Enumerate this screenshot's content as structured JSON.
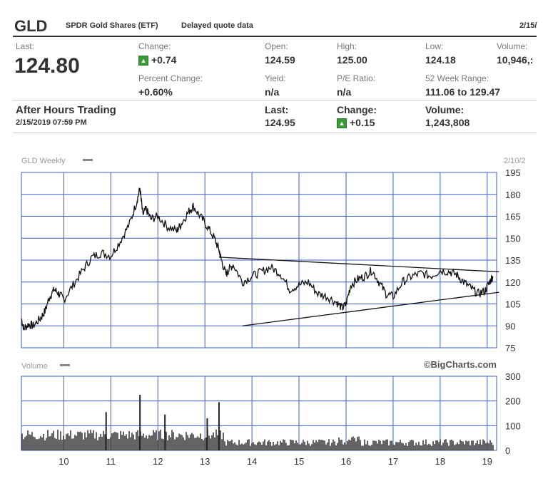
{
  "header": {
    "ticker": "GLD",
    "name": "SPDR Gold Shares (ETF)",
    "quote_note": "Delayed quote data",
    "date": "2/15/"
  },
  "quote": {
    "last_label": "Last:",
    "last": "124.80",
    "change_label": "Change:",
    "change": "+0.74",
    "pct_change_label": "Percent Change:",
    "pct_change": "+0.60%",
    "open_label": "Open:",
    "open": "124.59",
    "yield_label": "Yield:",
    "yield": "n/a",
    "high_label": "High:",
    "high": "125.00",
    "pe_label": "P/E Ratio:",
    "pe": "n/a",
    "low_label": "Low:",
    "low": "124.18",
    "range_label": "52 Week Range:",
    "range": "111.06 to 129.47",
    "volume_label": "Volume:",
    "volume": "10,946,:"
  },
  "after_hours": {
    "title": "After Hours Trading",
    "datetime": "2/15/2019 07:59 PM",
    "last_label": "Last:",
    "last": "124.95",
    "change_label": "Change:",
    "change": "+0.15",
    "volume_label": "Volume:",
    "volume": "1,243,808"
  },
  "colors": {
    "grid": "#3b5fbf",
    "price_line": "#111111",
    "volume_bars": "#222222",
    "up_icon": "#3a9a3a"
  },
  "chart_data": {
    "type": "line",
    "title": "GLD Weekly",
    "date_label": "2/10/2",
    "watermark": "©BigCharts.com",
    "x_tick_labels": [
      "10",
      "11",
      "12",
      "13",
      "14",
      "15",
      "16",
      "17",
      "18",
      "19"
    ],
    "x_range": [
      2009.1,
      2019.2
    ],
    "y_ticks": [
      195,
      180,
      165,
      150,
      135,
      120,
      105,
      90,
      75
    ],
    "ylim": [
      75,
      195
    ],
    "price_series": {
      "name": "GLD Weekly",
      "x": [
        2009.1,
        2009.15,
        2009.25,
        2009.35,
        2009.5,
        2009.6,
        2009.7,
        2009.8,
        2009.9,
        2010.0,
        2010.2,
        2010.4,
        2010.6,
        2010.8,
        2011.0,
        2011.2,
        2011.4,
        2011.55,
        2011.62,
        2011.68,
        2011.75,
        2011.85,
        2012.0,
        2012.2,
        2012.4,
        2012.5,
        2012.65,
        2012.75,
        2012.9,
        2013.05,
        2013.2,
        2013.3,
        2013.35,
        2013.45,
        2013.5,
        2013.6,
        2013.8,
        2014.0,
        2014.2,
        2014.4,
        2014.6,
        2014.8,
        2015.0,
        2015.2,
        2015.4,
        2015.6,
        2015.8,
        2015.92,
        2016.0,
        2016.1,
        2016.25,
        2016.4,
        2016.55,
        2016.7,
        2016.85,
        2017.0,
        2017.2,
        2017.4,
        2017.6,
        2017.8,
        2018.0,
        2018.2,
        2018.35,
        2018.5,
        2018.65,
        2018.8,
        2018.95,
        2019.05,
        2019.12
      ],
      "y": [
        95,
        88,
        91,
        90,
        95,
        100,
        110,
        115,
        112,
        108,
        118,
        128,
        137,
        140,
        138,
        148,
        160,
        175,
        184,
        166,
        170,
        163,
        165,
        158,
        155,
        160,
        168,
        172,
        165,
        158,
        150,
        142,
        135,
        125,
        128,
        132,
        120,
        124,
        127,
        130,
        126,
        115,
        118,
        120,
        112,
        110,
        106,
        102,
        105,
        118,
        122,
        124,
        128,
        120,
        112,
        110,
        120,
        124,
        126,
        124,
        128,
        127,
        125,
        120,
        116,
        112,
        114,
        120,
        124
      ]
    },
    "trendlines": [
      {
        "name": "upper-trendline",
        "x": [
          2013.3,
          2019.25
        ],
        "y": [
          137,
          127
        ]
      },
      {
        "name": "lower-trendline",
        "x": [
          2013.8,
          2019.25
        ],
        "y": [
          90,
          113
        ]
      }
    ],
    "volume_panel": {
      "title": "Volume",
      "y_ticks": [
        300,
        200,
        100,
        0
      ],
      "ylim": [
        0,
        300
      ],
      "spikes": [
        {
          "x": 2010.9,
          "y": 155
        },
        {
          "x": 2011.62,
          "y": 225
        },
        {
          "x": 2012.15,
          "y": 145
        },
        {
          "x": 2013.3,
          "y": 195
        },
        {
          "x": 2013.05,
          "y": 130
        }
      ]
    }
  }
}
